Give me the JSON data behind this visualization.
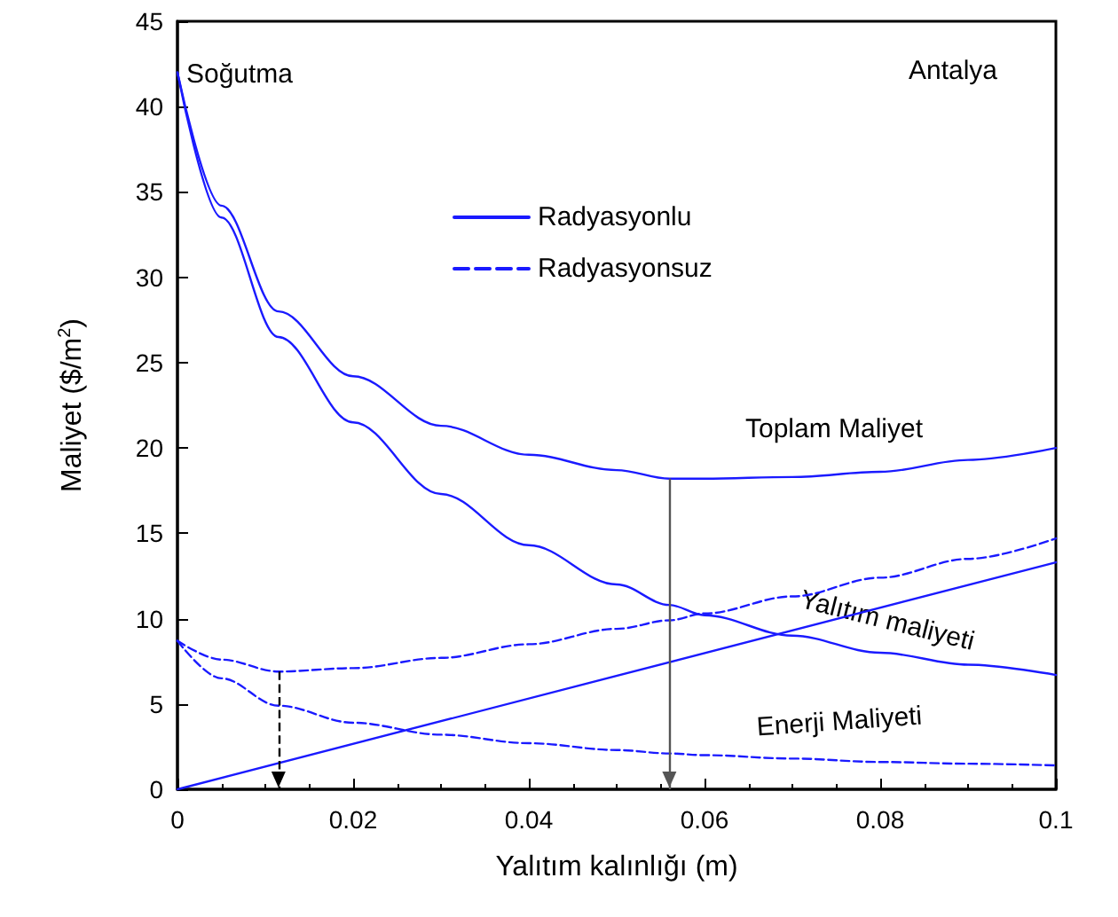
{
  "chart_data": {
    "type": "line",
    "xlabel": "Yalıtım kalınlığı (m)",
    "ylabel": "Maliyet ($/m$^{2}$)",
    "x": [
      0,
      0.005,
      0.0115,
      0.02,
      0.03,
      0.04,
      0.05,
      0.056,
      0.06,
      0.07,
      0.08,
      0.09,
      0.1
    ],
    "series": [
      {
        "name": "Radyasyonlu",
        "color": "#1a1aff",
        "line_style": "solid",
        "values": [
          42,
          34.2,
          28.0,
          24.2,
          21.3,
          19.6,
          18.7,
          18.2,
          18.2,
          18.3,
          18.6,
          19.3,
          20.0
        ]
      },
      {
        "name": "Radyasyonsuz",
        "color": "#1a1aff",
        "line_style": "dashed",
        "values": [
          8.7,
          7.6,
          6.9,
          7.1,
          7.7,
          8.5,
          9.4,
          9.9,
          10.3,
          11.3,
          12.4,
          13.5,
          14.7
        ]
      },
      {
        "color": "#1a1aff",
        "line_style": "solid",
        "values": [
          42,
          33.5,
          26.5,
          21.5,
          17.3,
          14.3,
          12.0,
          10.8,
          10.2,
          9.0,
          8.0,
          7.3,
          6.7
        ]
      },
      {
        "color": "#1a1aff",
        "line_style": "dashed",
        "values": [
          8.7,
          6.5,
          4.9,
          3.9,
          3.2,
          2.7,
          2.3,
          2.1,
          2.0,
          1.8,
          1.6,
          1.5,
          1.4
        ]
      },
      {
        "color": "#1a1aff",
        "line_style": "solid",
        "x": [
          0,
          0.1
        ],
        "values": [
          0,
          13.3
        ]
      }
    ],
    "xlim": [
      0,
      0.1
    ],
    "xticks": [
      0,
      0.02,
      0.04,
      0.06,
      0.08,
      0.1
    ],
    "ylim": [
      0,
      45
    ],
    "yticks": [
      0,
      5,
      10,
      15,
      20,
      25,
      30,
      35,
      40,
      45
    ],
    "ref_lines": [
      {
        "axis": "x",
        "value": 0.0115,
        "color": "#000000",
        "line_style": "dashed"
      },
      {
        "axis": "x",
        "value": 0.056,
        "color": "#555555",
        "line_style": "solid"
      }
    ],
    "annotations": [
      "Soğutma",
      "Antalya",
      "Toplam Maliyet",
      "Yalıtım maliyeti",
      "Enerji Maliyeti"
    ],
    "legend": "top",
    "grid": false,
    "marker": "none"
  }
}
